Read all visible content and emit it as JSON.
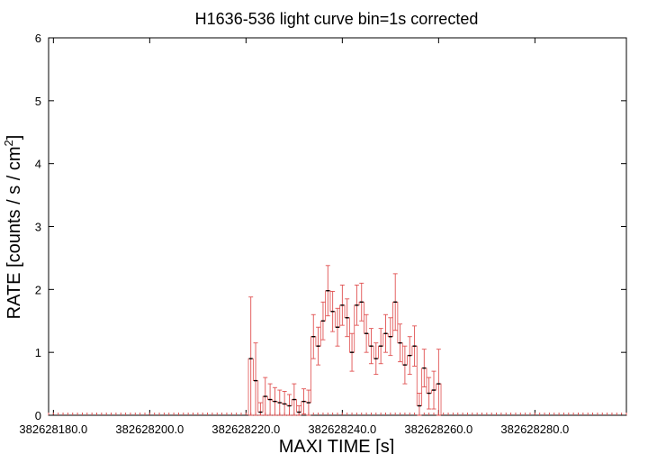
{
  "chart_data": {
    "type": "line",
    "title": "H1636-536 light curve bin=1s corrected",
    "xlabel": "MAXI TIME [s]",
    "ylabel_main": "RATE [counts / s / cm",
    "ylabel_sup": "2",
    "ylabel_tail": "]",
    "xlim": [
      382628179,
      382628299
    ],
    "ylim": [
      0,
      6
    ],
    "x_ticks": [
      382628180,
      382628200,
      382628220,
      382628240,
      382628260,
      382628280
    ],
    "x_tick_labels": [
      "382628180.0",
      "382628200.0",
      "382628220.0",
      "382628240.0",
      "382628260.0",
      "382628280.0"
    ],
    "y_ticks": [
      0,
      1,
      2,
      3,
      4,
      5,
      6
    ],
    "y_tick_labels": [
      "0",
      "1",
      "2",
      "3",
      "4",
      "5",
      "6"
    ],
    "line_color": "#000000",
    "error_color": "#e05050",
    "series": [
      {
        "x": [
          382628221,
          382628222,
          382628223,
          382628224,
          382628225,
          382628226,
          382628227,
          382628228,
          382628229,
          382628230,
          382628231,
          382628232,
          382628233,
          382628234,
          382628235,
          382628236,
          382628237,
          382628238,
          382628239,
          382628240,
          382628241,
          382628242,
          382628243,
          382628244,
          382628245,
          382628246,
          382628247,
          382628248,
          382628249,
          382628250,
          382628251,
          382628252,
          382628253,
          382628254,
          382628255,
          382628256,
          382628257,
          382628258,
          382628259,
          382628260
        ],
        "y": [
          0.9,
          0.55,
          0.05,
          0.3,
          0.25,
          0.22,
          0.2,
          0.18,
          0.15,
          0.25,
          0.05,
          0.22,
          0.2,
          1.25,
          1.1,
          1.5,
          1.98,
          1.65,
          1.4,
          1.75,
          1.55,
          1.0,
          1.75,
          1.8,
          1.3,
          1.1,
          0.9,
          1.1,
          1.3,
          1.25,
          1.8,
          1.15,
          0.8,
          0.95,
          1.1,
          0.15,
          0.75,
          0.35,
          0.4,
          0.5
        ],
        "err": [
          0.98,
          0.6,
          0.15,
          0.3,
          0.25,
          0.22,
          0.2,
          0.2,
          0.18,
          0.25,
          0.1,
          0.2,
          0.2,
          0.35,
          0.3,
          0.3,
          0.4,
          0.32,
          0.3,
          0.32,
          0.3,
          0.3,
          0.32,
          0.3,
          0.3,
          0.28,
          0.25,
          0.28,
          0.3,
          0.3,
          0.45,
          0.3,
          0.3,
          0.3,
          0.32,
          0.2,
          0.3,
          0.25,
          0.3,
          0.55
        ]
      }
    ]
  }
}
